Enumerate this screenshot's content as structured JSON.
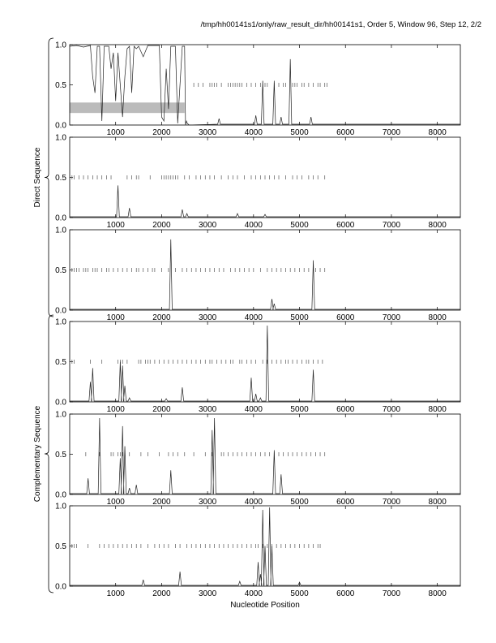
{
  "title": "/tmp/hh00141s1/only/raw_result_dir/hh00141s1, Order 5, Window 96, Step 12, 2/2",
  "chart_data": {
    "type": "line",
    "xlabel": "Nucleotide Position",
    "xlim": [
      0,
      8500
    ],
    "ylim": [
      0,
      1
    ],
    "xticks": [
      "1000",
      "2000",
      "3000",
      "4000",
      "5000",
      "6000",
      "7000",
      "8000"
    ],
    "yticks": [
      "0.0",
      "0.5",
      "1.0"
    ],
    "groups": [
      {
        "label": "Direct Sequence",
        "panels": [
          0,
          1,
          2
        ]
      },
      {
        "label": "Complementary Sequence",
        "panels": [
          3,
          4,
          5
        ]
      }
    ],
    "panels": [
      {
        "line": [
          [
            0,
            0.98
          ],
          [
            150,
            0.99
          ],
          [
            300,
            0.97
          ],
          [
            450,
            0.99
          ],
          [
            500,
            0.6
          ],
          [
            550,
            0.4
          ],
          [
            600,
            0.98
          ],
          [
            650,
            0.98
          ],
          [
            700,
            0.05
          ],
          [
            750,
            0.98
          ],
          [
            850,
            0.98
          ],
          [
            900,
            0.7
          ],
          [
            950,
            0.9
          ],
          [
            1000,
            0.3
          ],
          [
            1050,
            0.9
          ],
          [
            1100,
            0.5
          ],
          [
            1150,
            0.1
          ],
          [
            1200,
            0.6
          ],
          [
            1250,
            0.95
          ],
          [
            1300,
            0.98
          ],
          [
            1350,
            0.4
          ],
          [
            1400,
            0.98
          ],
          [
            1450,
            0.95
          ],
          [
            1500,
            0.98
          ],
          [
            1600,
            0.85
          ],
          [
            1700,
            0.99
          ],
          [
            1950,
            0.99
          ],
          [
            2000,
            0.1
          ],
          [
            2050,
            0.05
          ],
          [
            2100,
            0.7
          ],
          [
            2150,
            0.2
          ],
          [
            2200,
            0.98
          ],
          [
            2300,
            0.98
          ],
          [
            2350,
            0.02
          ],
          [
            2450,
            0.98
          ],
          [
            2500,
            0.98
          ],
          [
            2520,
            0.0
          ],
          [
            2540,
            0.05
          ],
          [
            2560,
            0.02
          ],
          [
            2600,
            0.0
          ]
        ],
        "peaks": [
          [
            3250,
            0.08
          ],
          [
            4050,
            0.12
          ],
          [
            4200,
            0.55
          ],
          [
            4450,
            0.55
          ],
          [
            4600,
            0.1
          ],
          [
            4800,
            0.82
          ],
          [
            5250,
            0.1
          ]
        ],
        "band": [
          0,
          2500,
          0.15,
          0.28
        ],
        "ticks": [
          2700,
          2800,
          2900,
          3050,
          3100,
          3150,
          3200,
          3300,
          3450,
          3500,
          3550,
          3600,
          3650,
          3700,
          3750,
          3850,
          3950,
          4050,
          4150,
          4250,
          4300,
          4450,
          4550,
          4650,
          4700,
          4850,
          4900,
          4950,
          5050,
          5100,
          5200,
          5300,
          5400,
          5450,
          5550,
          5600
        ]
      },
      {
        "line": [],
        "peaks": [
          [
            1050,
            0.4
          ],
          [
            1300,
            0.12
          ],
          [
            2450,
            0.1
          ],
          [
            2550,
            0.05
          ],
          [
            3650,
            0.05
          ],
          [
            4250,
            0.04
          ]
        ],
        "ticks": [
          50,
          100,
          200,
          300,
          400,
          500,
          600,
          700,
          800,
          900,
          1250,
          1350,
          1450,
          1500,
          1750,
          2000,
          2050,
          2100,
          2150,
          2200,
          2250,
          2300,
          2350,
          2500,
          2600,
          2750,
          2850,
          2950,
          3050,
          3150,
          3300,
          3450,
          3550,
          3650,
          3800,
          3950,
          4050,
          4150,
          4250,
          4350,
          4450,
          4550,
          4700,
          4850,
          4950,
          5050,
          5200,
          5300,
          5400,
          5550
        ]
      },
      {
        "line": [],
        "peaks": [
          [
            2200,
            0.88
          ],
          [
            4400,
            0.14
          ],
          [
            4450,
            0.08
          ],
          [
            5300,
            0.62
          ]
        ],
        "ticks": [
          50,
          100,
          150,
          200,
          300,
          350,
          400,
          500,
          550,
          600,
          700,
          800,
          850,
          950,
          1050,
          1150,
          1250,
          1350,
          1450,
          1500,
          1600,
          1700,
          1800,
          1850,
          2000,
          2150,
          2300,
          2450,
          2550,
          2650,
          2750,
          2850,
          2950,
          3050,
          3150,
          3250,
          3350,
          3500,
          3600,
          3700,
          3800,
          3900,
          4000,
          4150,
          4300,
          4400,
          4500,
          4600,
          4700,
          4800,
          4900,
          5000,
          5100,
          5200,
          5350,
          5450,
          5550
        ]
      },
      {
        "line": [],
        "peaks": [
          [
            450,
            0.25
          ],
          [
            500,
            0.42
          ],
          [
            1100,
            0.5
          ],
          [
            1150,
            0.45
          ],
          [
            1200,
            0.2
          ],
          [
            1300,
            0.05
          ],
          [
            2100,
            0.04
          ],
          [
            2450,
            0.18
          ],
          [
            3950,
            0.3
          ],
          [
            4050,
            0.1
          ],
          [
            4150,
            0.05
          ],
          [
            4300,
            0.95
          ],
          [
            5300,
            0.4
          ]
        ],
        "ticks": [
          50,
          100,
          450,
          700,
          1050,
          1100,
          1150,
          1250,
          1500,
          1550,
          1650,
          1700,
          1750,
          1850,
          1950,
          2050,
          2150,
          2250,
          2350,
          2450,
          2550,
          2650,
          2750,
          2850,
          2950,
          3050,
          3100,
          3200,
          3300,
          3400,
          3500,
          3550,
          3700,
          3750,
          3850,
          3950,
          4050,
          4200,
          4300,
          4400,
          4500,
          4600,
          4700,
          4750,
          4850,
          4950,
          5050,
          5150,
          5200,
          5300,
          5400,
          5500
        ]
      },
      {
        "line": [],
        "peaks": [
          [
            400,
            0.2
          ],
          [
            650,
            0.95
          ],
          [
            1100,
            0.45
          ],
          [
            1150,
            0.85
          ],
          [
            1200,
            0.6
          ],
          [
            1300,
            0.08
          ],
          [
            1450,
            0.12
          ],
          [
            2200,
            0.3
          ],
          [
            3100,
            0.8
          ],
          [
            3150,
            0.95
          ],
          [
            4450,
            0.55
          ],
          [
            4600,
            0.25
          ]
        ],
        "ticks": [
          350,
          650,
          900,
          950,
          1050,
          1100,
          1150,
          1300,
          1550,
          1700,
          1950,
          2150,
          2250,
          2350,
          2500,
          2700,
          2950,
          3100,
          3300,
          3350,
          3450,
          3550,
          3650,
          3750,
          3850,
          3950,
          4050,
          4150,
          4250,
          4350,
          4450,
          4550,
          4650,
          4750,
          4850,
          4950,
          5050,
          5150,
          5250,
          5350,
          5450,
          5550
        ]
      },
      {
        "line": [],
        "peaks": [
          [
            1600,
            0.08
          ],
          [
            2400,
            0.18
          ],
          [
            3700,
            0.06
          ],
          [
            4100,
            0.3
          ],
          [
            4150,
            0.15
          ],
          [
            4200,
            0.95
          ],
          [
            4250,
            0.5
          ],
          [
            4350,
            0.98
          ],
          [
            4400,
            0.5
          ],
          [
            5000,
            0.05
          ]
        ],
        "ticks": [
          50,
          100,
          150,
          400,
          650,
          750,
          850,
          950,
          1050,
          1150,
          1250,
          1350,
          1450,
          1550,
          1700,
          1850,
          1950,
          2050,
          2150,
          2300,
          2400,
          2550,
          2650,
          2750,
          2850,
          2950,
          3050,
          3150,
          3250,
          3350,
          3450,
          3550,
          3650,
          3750,
          3850,
          3950,
          4050,
          4100,
          4200,
          4300,
          4400,
          4500,
          4600,
          4700,
          4800,
          4900,
          5000,
          5100,
          5200,
          5300,
          5400,
          5450
        ]
      }
    ]
  }
}
